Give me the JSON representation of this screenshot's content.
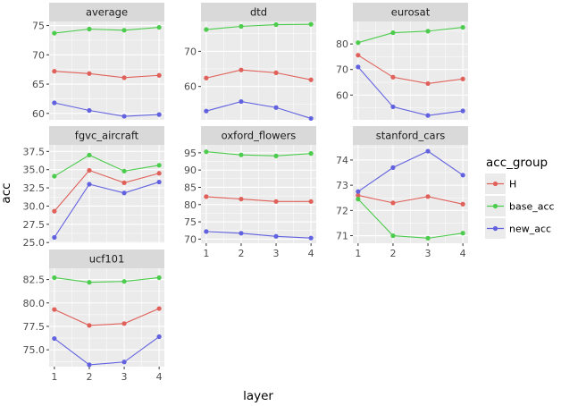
{
  "chart_data": {
    "type": "line",
    "xlabel": "layer",
    "ylabel": "acc",
    "x": [
      1,
      2,
      3,
      4
    ],
    "legend": {
      "title": "acc_group",
      "placement": "right",
      "entries": [
        {
          "key": "H",
          "label": "H",
          "color": "#e0605a"
        },
        {
          "key": "base_acc",
          "label": "base_acc",
          "color": "#4ccc4c"
        },
        {
          "key": "new_acc",
          "label": "new_acc",
          "color": "#6262e0"
        }
      ]
    },
    "panels": [
      {
        "title": "average",
        "ylim": [
          58.9,
          75.7
        ],
        "yticks": [
          60,
          65,
          70,
          75
        ],
        "xticks": [],
        "series": {
          "H": [
            67.2,
            66.8,
            66.1,
            66.5
          ],
          "base_acc": [
            73.7,
            74.4,
            74.2,
            74.7
          ],
          "new_acc": [
            61.8,
            60.5,
            59.5,
            59.8
          ]
        }
      },
      {
        "title": "dtd",
        "ylim": [
          50.5,
          78.5
        ],
        "yticks": [
          60,
          70
        ],
        "xticks": [],
        "series": {
          "H": [
            62.4,
            64.7,
            63.9,
            61.9
          ],
          "base_acc": [
            76.2,
            77.1,
            77.6,
            77.7
          ],
          "new_acc": [
            53.0,
            55.7,
            54.0,
            50.9
          ]
        }
      },
      {
        "title": "eurosat",
        "ylim": [
          50.3,
          88.8
        ],
        "yticks": [
          60,
          70,
          80
        ],
        "xticks": [],
        "series": {
          "H": [
            75.6,
            67.0,
            64.5,
            66.3
          ],
          "base_acc": [
            80.5,
            84.4,
            85.0,
            86.5
          ],
          "new_acc": [
            71.0,
            55.4,
            52.0,
            53.8
          ]
        }
      },
      {
        "title": "fgvc_aircraft",
        "ylim": [
          24.9,
          38.4
        ],
        "yticks": [
          25.0,
          27.5,
          30.0,
          32.5,
          35.0,
          37.5
        ],
        "yfmt": 1,
        "xticks": [],
        "series": {
          "H": [
            29.3,
            34.9,
            33.2,
            34.5
          ],
          "base_acc": [
            34.1,
            37.0,
            34.8,
            35.6
          ],
          "new_acc": [
            25.7,
            33.0,
            31.8,
            33.3
          ]
        }
      },
      {
        "title": "oxford_flowers",
        "ylim": [
          68.8,
          97.3
        ],
        "yticks": [
          70,
          75,
          80,
          85,
          90,
          95
        ],
        "xticks": [
          1,
          2,
          3,
          4
        ],
        "series": {
          "H": [
            82.3,
            81.6,
            80.9,
            80.9
          ],
          "base_acc": [
            95.3,
            94.4,
            94.1,
            94.8
          ],
          "new_acc": [
            72.2,
            71.7,
            70.8,
            70.3
          ]
        }
      },
      {
        "title": "stanford_cars",
        "ylim": [
          70.7,
          74.6
        ],
        "yticks": [
          71,
          72,
          73,
          74
        ],
        "xticks": [
          1,
          2,
          3,
          4
        ],
        "series": {
          "H": [
            72.6,
            72.3,
            72.55,
            72.25
          ],
          "base_acc": [
            72.45,
            71.0,
            70.9,
            71.1
          ],
          "new_acc": [
            72.75,
            73.7,
            74.35,
            73.4
          ]
        }
      },
      {
        "title": "ucf101",
        "ylim": [
          73.2,
          83.7
        ],
        "yticks": [
          75.0,
          77.5,
          80.0,
          82.5
        ],
        "yfmt": 1,
        "xticks": [
          1,
          2,
          3,
          4
        ],
        "series": {
          "H": [
            79.3,
            77.6,
            77.8,
            79.4
          ],
          "base_acc": [
            82.7,
            82.2,
            82.3,
            82.7
          ],
          "new_acc": [
            76.2,
            73.4,
            73.7,
            76.4
          ]
        }
      }
    ]
  }
}
